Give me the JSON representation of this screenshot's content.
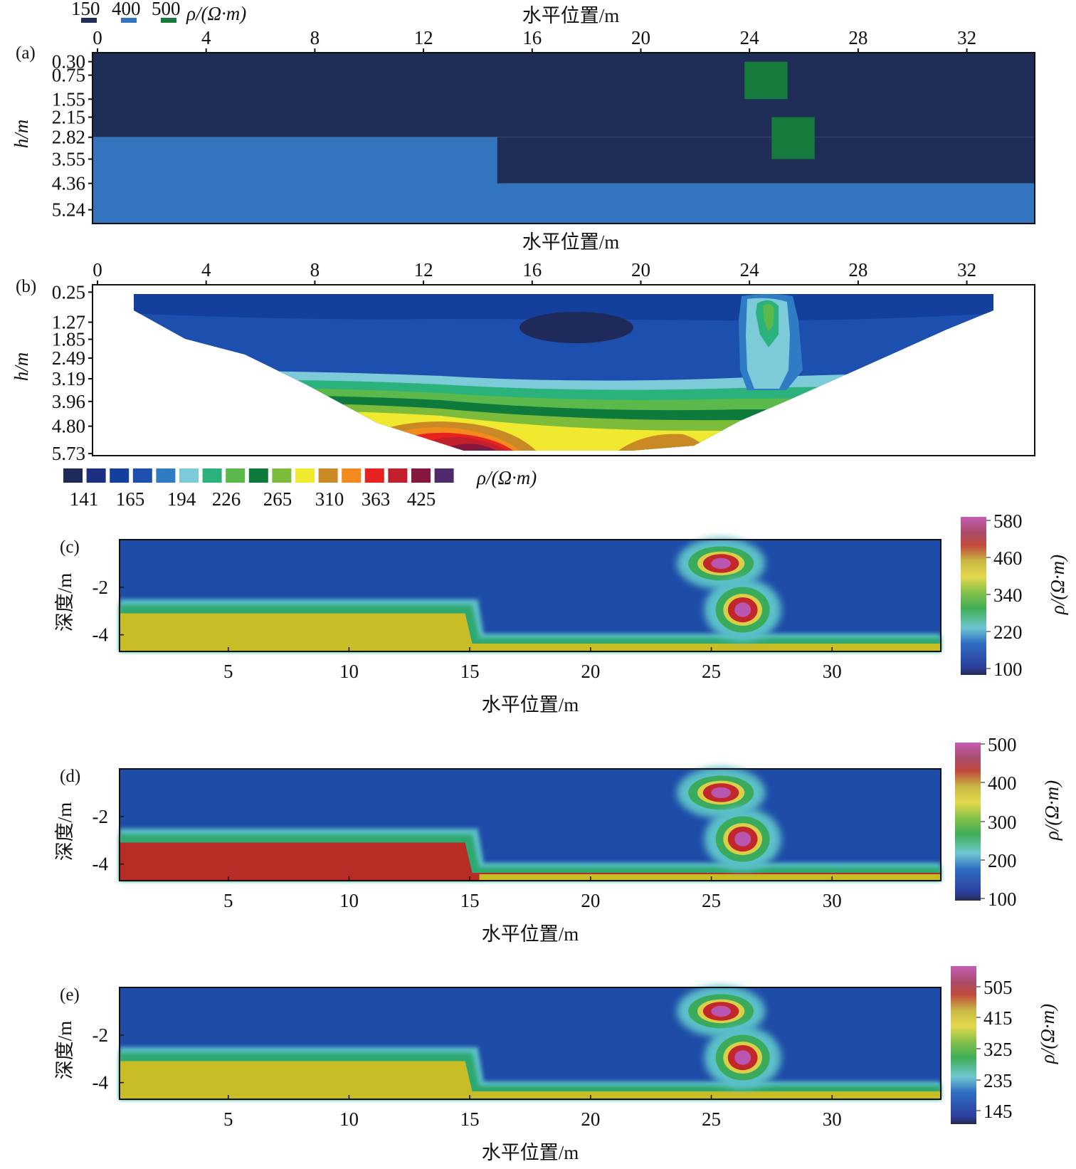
{
  "colors": {
    "a": {
      "150": "#1f2d57",
      "400": "#3274bd",
      "500": "#167a3d"
    },
    "b_palette": [
      "#1e2a5a",
      "#1c2f80",
      "#143f9d",
      "#1d4fae",
      "#2f7cc4",
      "#7dcbd9",
      "#2bb17c",
      "#5bb84a",
      "#0e7a3c",
      "#7dbc3a",
      "#f1e930",
      "#c98a26",
      "#f28a1e",
      "#e8221f",
      "#c2202d",
      "#86183f",
      "#4e2a6b"
    ],
    "base_blue": "#1e4ca8"
  },
  "chart_data": [
    {
      "panel": "a",
      "type": "heatmap",
      "label": "(a)",
      "xlabel": "水平位置/m",
      "ylabel": "h/m",
      "x_ticks": [
        "0",
        "4",
        "8",
        "12",
        "16",
        "20",
        "24",
        "28",
        "32"
      ],
      "y_ticks": [
        "0.30",
        "0.75",
        "1.55",
        "2.15",
        "2.82",
        "3.55",
        "4.36",
        "5.24"
      ],
      "legend": {
        "values": [
          "150",
          "400",
          "500"
        ],
        "unit": "ρ/(Ω·m)"
      },
      "model": [
        {
          "name": "layer1",
          "rho": 150,
          "x": [
            0,
            34.5
          ],
          "depth": [
            0.0,
            2.82
          ]
        },
        {
          "name": "layer2-left",
          "rho": 400,
          "x": [
            0,
            14.9
          ],
          "depth": [
            2.82,
            5.7
          ]
        },
        {
          "name": "layer1-right",
          "rho": 150,
          "x": [
            14.9,
            34.5
          ],
          "depth": [
            2.82,
            4.36
          ]
        },
        {
          "name": "layer2-right",
          "rho": 400,
          "x": [
            14.9,
            34.5
          ],
          "depth": [
            4.36,
            5.7
          ]
        },
        {
          "name": "block1",
          "rho": 500,
          "x": [
            24.0,
            25.4
          ],
          "depth": [
            0.3,
            1.55
          ]
        },
        {
          "name": "block2",
          "rho": 500,
          "x": [
            25.0,
            26.4
          ],
          "depth": [
            2.15,
            3.55
          ]
        }
      ]
    },
    {
      "panel": "b",
      "type": "heatmap",
      "label": "(b)",
      "xlabel": "水平位置/m",
      "ylabel": "h/m",
      "x_ticks": [
        "0",
        "4",
        "8",
        "12",
        "16",
        "20",
        "24",
        "28",
        "32"
      ],
      "y_ticks": [
        "0.25",
        "1.27",
        "1.85",
        "2.49",
        "3.19",
        "3.96",
        "4.80",
        "5.73"
      ],
      "legend": {
        "labels": [
          "141",
          "165",
          "194",
          "226",
          "265",
          "310",
          "363",
          "425"
        ],
        "unit": "ρ/(Ω·m)"
      }
    },
    {
      "panel": "c",
      "type": "heatmap",
      "label": "(c)",
      "xlabel": "水平位置/m",
      "ylabel": "深度/m",
      "x_ticks": [
        "5",
        "10",
        "15",
        "20",
        "25",
        "30"
      ],
      "y_ticks": [
        "-2",
        "-4"
      ],
      "fill": "#c8bd24",
      "colorbar": {
        "labels": [
          "580",
          "460",
          "340",
          "220",
          "100"
        ],
        "unit": "ρ/(Ω·m)"
      }
    },
    {
      "panel": "d",
      "type": "heatmap",
      "label": "(d)",
      "xlabel": "水平位置/m",
      "ylabel": "深度/m",
      "x_ticks": [
        "5",
        "10",
        "15",
        "20",
        "25",
        "30"
      ],
      "y_ticks": [
        "-2",
        "-4"
      ],
      "fill": "#b82c25",
      "colorbar": {
        "labels": [
          "500",
          "400",
          "300",
          "200",
          "100"
        ],
        "unit": "ρ/(Ω·m)"
      }
    },
    {
      "panel": "e",
      "type": "heatmap",
      "label": "(e)",
      "xlabel": "水平位置/m",
      "ylabel": "深度/m",
      "x_ticks": [
        "5",
        "10",
        "15",
        "20",
        "25",
        "30"
      ],
      "y_ticks": [
        "-2",
        "-4"
      ],
      "fill": "#c8bd24",
      "colorbar": {
        "labels": [
          "505",
          "415",
          "325",
          "235",
          "145"
        ],
        "unit": "ρ/(Ω·m)"
      }
    }
  ]
}
